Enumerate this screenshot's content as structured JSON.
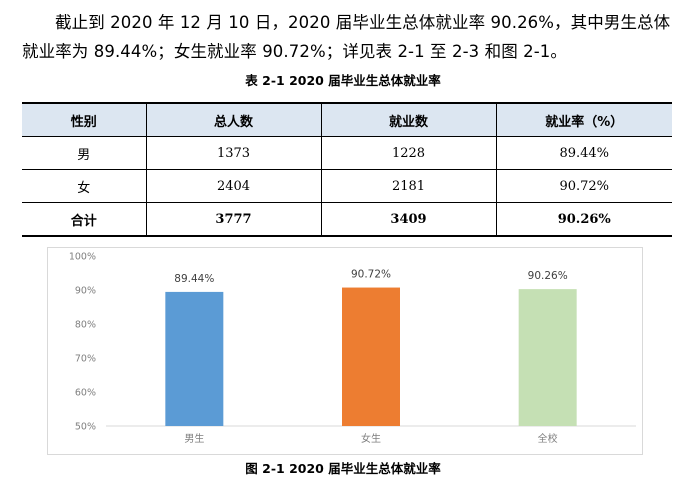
{
  "paragraph": "截止到 2020 年 12 月 10 日，2020 届毕业生总体就业率 90.26%，其中男生总体就业率为 89.44%；女生就业率 90.72%；详见表 2-1 至 2-3 和图 2-1。",
  "table_caption": "表 2-1 2020 届毕业生总体就业率",
  "table": {
    "headers": [
      "性别",
      "总人数",
      "就业数",
      "就业率（%）"
    ],
    "rows": [
      [
        "男",
        "1373",
        "1228",
        "89.44%"
      ],
      [
        "女",
        "2404",
        "2181",
        "90.72%"
      ],
      [
        "合计",
        "3777",
        "3409",
        "90.26%"
      ]
    ]
  },
  "figure_caption": "图 2-1 2020 届毕业生总体就业率",
  "chart_data": {
    "type": "bar",
    "categories": [
      "男生",
      "女生",
      "全校"
    ],
    "values": [
      89.44,
      90.72,
      90.26
    ],
    "data_labels": [
      "89.44%",
      "90.72%",
      "90.26%"
    ],
    "colors": [
      "#5b9bd5",
      "#ed7d31",
      "#c5e0b4"
    ],
    "ylim": [
      50,
      100
    ],
    "yticks": [
      50,
      60,
      70,
      80,
      90,
      100
    ],
    "ytick_labels": [
      "50%",
      "60%",
      "70%",
      "80%",
      "90%",
      "100%"
    ],
    "grid": false,
    "title": "",
    "xlabel": "",
    "ylabel": ""
  }
}
